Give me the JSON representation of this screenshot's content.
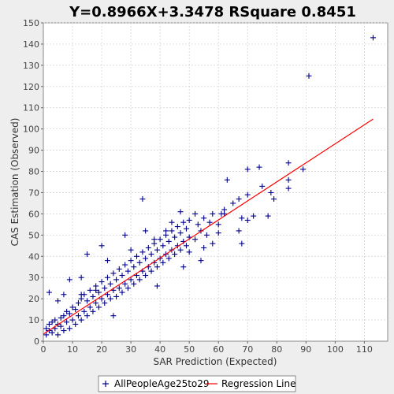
{
  "chart_data": {
    "type": "scatter",
    "title": "Y=0.8966X+3.3478    RSquare 0.8451",
    "xlabel": "SAR Prediction (Expected)",
    "ylabel": "CAS Estimation (Observed)",
    "xlim": [
      0,
      118
    ],
    "ylim": [
      0,
      150
    ],
    "x_ticks": [
      0,
      10,
      20,
      30,
      40,
      50,
      60,
      70,
      80,
      90,
      100,
      110
    ],
    "y_ticks": [
      0,
      10,
      20,
      30,
      40,
      50,
      60,
      70,
      80,
      90,
      100,
      110,
      120,
      130,
      140,
      150
    ],
    "grid": true,
    "legend_position": "bottom",
    "series": [
      {
        "name": "AllPeopleAge25to29",
        "marker": "plus",
        "color": "#00008b",
        "points": [
          [
            1,
            3
          ],
          [
            1,
            6
          ],
          [
            2,
            5
          ],
          [
            2,
            8
          ],
          [
            3,
            4
          ],
          [
            3,
            9
          ],
          [
            4,
            6
          ],
          [
            4,
            10
          ],
          [
            5,
            3
          ],
          [
            5,
            8
          ],
          [
            6,
            7
          ],
          [
            6,
            11
          ],
          [
            7,
            5
          ],
          [
            7,
            12
          ],
          [
            8,
            9
          ],
          [
            8,
            14
          ],
          [
            9,
            6
          ],
          [
            9,
            13
          ],
          [
            10,
            10
          ],
          [
            10,
            16
          ],
          [
            11,
            8
          ],
          [
            11,
            15
          ],
          [
            12,
            12
          ],
          [
            12,
            18
          ],
          [
            13,
            10
          ],
          [
            13,
            20
          ],
          [
            14,
            14
          ],
          [
            14,
            22
          ],
          [
            15,
            12
          ],
          [
            15,
            19
          ],
          [
            16,
            16
          ],
          [
            16,
            24
          ],
          [
            17,
            14
          ],
          [
            17,
            21
          ],
          [
            18,
            18
          ],
          [
            18,
            26
          ],
          [
            19,
            16
          ],
          [
            19,
            23
          ],
          [
            20,
            20
          ],
          [
            20,
            28
          ],
          [
            21,
            18
          ],
          [
            21,
            25
          ],
          [
            22,
            22
          ],
          [
            22,
            30
          ],
          [
            23,
            20
          ],
          [
            23,
            27
          ],
          [
            24,
            24
          ],
          [
            24,
            32
          ],
          [
            25,
            21
          ],
          [
            25,
            29
          ],
          [
            26,
            25
          ],
          [
            26,
            34
          ],
          [
            27,
            23
          ],
          [
            27,
            31
          ],
          [
            28,
            27
          ],
          [
            28,
            36
          ],
          [
            29,
            25
          ],
          [
            29,
            33
          ],
          [
            30,
            29
          ],
          [
            30,
            38
          ],
          [
            31,
            27
          ],
          [
            31,
            35
          ],
          [
            32,
            31
          ],
          [
            32,
            40
          ],
          [
            33,
            29
          ],
          [
            33,
            37
          ],
          [
            34,
            33
          ],
          [
            34,
            42
          ],
          [
            35,
            31
          ],
          [
            35,
            39
          ],
          [
            36,
            35
          ],
          [
            36,
            44
          ],
          [
            37,
            33
          ],
          [
            37,
            41
          ],
          [
            38,
            37
          ],
          [
            38,
            46
          ],
          [
            39,
            35
          ],
          [
            39,
            43
          ],
          [
            40,
            39
          ],
          [
            40,
            48
          ],
          [
            41,
            37
          ],
          [
            41,
            45
          ],
          [
            42,
            41
          ],
          [
            42,
            50
          ],
          [
            43,
            39
          ],
          [
            43,
            47
          ],
          [
            44,
            43
          ],
          [
            44,
            52
          ],
          [
            45,
            41
          ],
          [
            45,
            49
          ],
          [
            46,
            45
          ],
          [
            46,
            54
          ],
          [
            47,
            43
          ],
          [
            47,
            51
          ],
          [
            48,
            47
          ],
          [
            48,
            56
          ],
          [
            49,
            45
          ],
          [
            49,
            53
          ],
          [
            50,
            49
          ],
          [
            50,
            57
          ],
          [
            52,
            48
          ],
          [
            53,
            55
          ],
          [
            54,
            52
          ],
          [
            55,
            58
          ],
          [
            56,
            50
          ],
          [
            57,
            56
          ],
          [
            58,
            60
          ],
          [
            60,
            55
          ],
          [
            61,
            60
          ],
          [
            62,
            62
          ],
          [
            2,
            23
          ],
          [
            5,
            19
          ],
          [
            7,
            22
          ],
          [
            9,
            29
          ],
          [
            13,
            30
          ],
          [
            13,
            22
          ],
          [
            15,
            41
          ],
          [
            18,
            24
          ],
          [
            20,
            45
          ],
          [
            22,
            38
          ],
          [
            24,
            12
          ],
          [
            28,
            50
          ],
          [
            30,
            43
          ],
          [
            34,
            67
          ],
          [
            35,
            52
          ],
          [
            38,
            48
          ],
          [
            39,
            26
          ],
          [
            42,
            52
          ],
          [
            44,
            56
          ],
          [
            47,
            61
          ],
          [
            48,
            35
          ],
          [
            50,
            42
          ],
          [
            52,
            60
          ],
          [
            54,
            38
          ],
          [
            55,
            44
          ],
          [
            58,
            46
          ],
          [
            60,
            51
          ],
          [
            62,
            60
          ],
          [
            63,
            76
          ],
          [
            65,
            65
          ],
          [
            67,
            52
          ],
          [
            67,
            67
          ],
          [
            68,
            46
          ],
          [
            68,
            58
          ],
          [
            70,
            57
          ],
          [
            70,
            69
          ],
          [
            70,
            81
          ],
          [
            72,
            59
          ],
          [
            74,
            82
          ],
          [
            75,
            73
          ],
          [
            77,
            59
          ],
          [
            78,
            70
          ],
          [
            79,
            67
          ],
          [
            84,
            72
          ],
          [
            84,
            76
          ],
          [
            84,
            84
          ],
          [
            89,
            81
          ],
          [
            91,
            125
          ],
          [
            113,
            143
          ]
        ]
      },
      {
        "name": "Regression Line",
        "type": "line",
        "color": "#ff0000",
        "slope": 0.8966,
        "intercept": 3.3478,
        "x_range": [
          0,
          113
        ]
      }
    ]
  }
}
